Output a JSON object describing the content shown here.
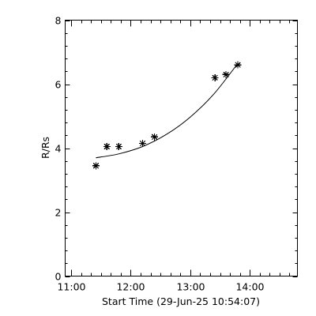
{
  "chart_data": {
    "type": "scatter",
    "title": "",
    "xlabel": "Start Time (29-Jun-25 10:54:07)",
    "ylabel": "R/Rs",
    "xlim": [
      "10:54",
      "14:48"
    ],
    "ylim": [
      0,
      8
    ],
    "x_ticks": [
      "11:00",
      "12:00",
      "13:00",
      "14:00"
    ],
    "y_ticks": [
      "0",
      "2",
      "4",
      "6",
      "8"
    ],
    "grid": false,
    "legend": "none",
    "marker": "asterisk",
    "color": "#000000",
    "series": [
      {
        "points": [
          {
            "x": "11:25",
            "y": 3.45
          },
          {
            "x": "11:36",
            "y": 4.05
          },
          {
            "x": "11:48",
            "y": 4.05
          },
          {
            "x": "12:12",
            "y": 4.15
          },
          {
            "x": "12:24",
            "y": 4.35
          },
          {
            "x": "13:25",
            "y": 6.2
          },
          {
            "x": "13:36",
            "y": 6.3
          },
          {
            "x": "13:48",
            "y": 6.6
          }
        ]
      }
    ],
    "fit": {
      "type": "curve",
      "points": [
        {
          "x": "11:25",
          "y": 3.7
        },
        {
          "x": "11:48",
          "y": 3.82
        },
        {
          "x": "12:12",
          "y": 4.05
        },
        {
          "x": "12:36",
          "y": 4.43
        },
        {
          "x": "13:00",
          "y": 4.97
        },
        {
          "x": "13:24",
          "y": 5.7
        },
        {
          "x": "13:48",
          "y": 6.65
        }
      ]
    }
  }
}
